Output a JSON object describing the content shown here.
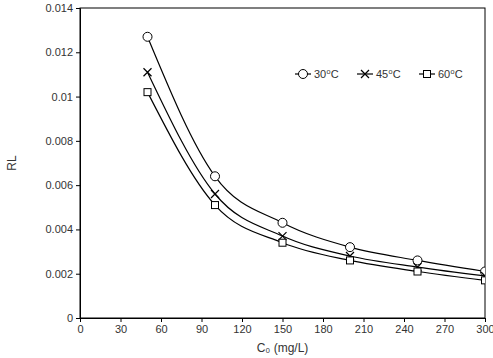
{
  "chart_data": {
    "type": "line",
    "x_label": "C₀ (mg/L)",
    "y_label": "RL",
    "x": [
      50,
      100,
      150,
      200,
      250,
      300
    ],
    "series": [
      {
        "name": "30⁰C",
        "color": "#000000",
        "marker": "circle",
        "line_style": "solid",
        "values": [
          0.0127,
          0.0064,
          0.0043,
          0.0032,
          0.0026,
          0.0021
        ]
      },
      {
        "name": "45⁰C",
        "color": "#000000",
        "marker": "x",
        "line_style": "solid",
        "values": [
          0.0111,
          0.0056,
          0.0037,
          0.0028,
          0.0023,
          0.0019
        ]
      },
      {
        "name": "60⁰C",
        "color": "#000000",
        "marker": "square",
        "line_style": "solid",
        "values": [
          0.0102,
          0.0051,
          0.0034,
          0.0026,
          0.0021,
          0.0017
        ]
      }
    ],
    "xlim": [
      0,
      300
    ],
    "xticks": [
      0,
      30,
      60,
      90,
      120,
      150,
      180,
      210,
      240,
      270,
      300
    ],
    "ylim": [
      0,
      0.014
    ],
    "yticks": [
      0,
      0.002,
      0.004,
      0.006,
      0.008,
      0.01,
      0.012,
      0.014
    ],
    "grid": false,
    "legend": "upper right"
  }
}
